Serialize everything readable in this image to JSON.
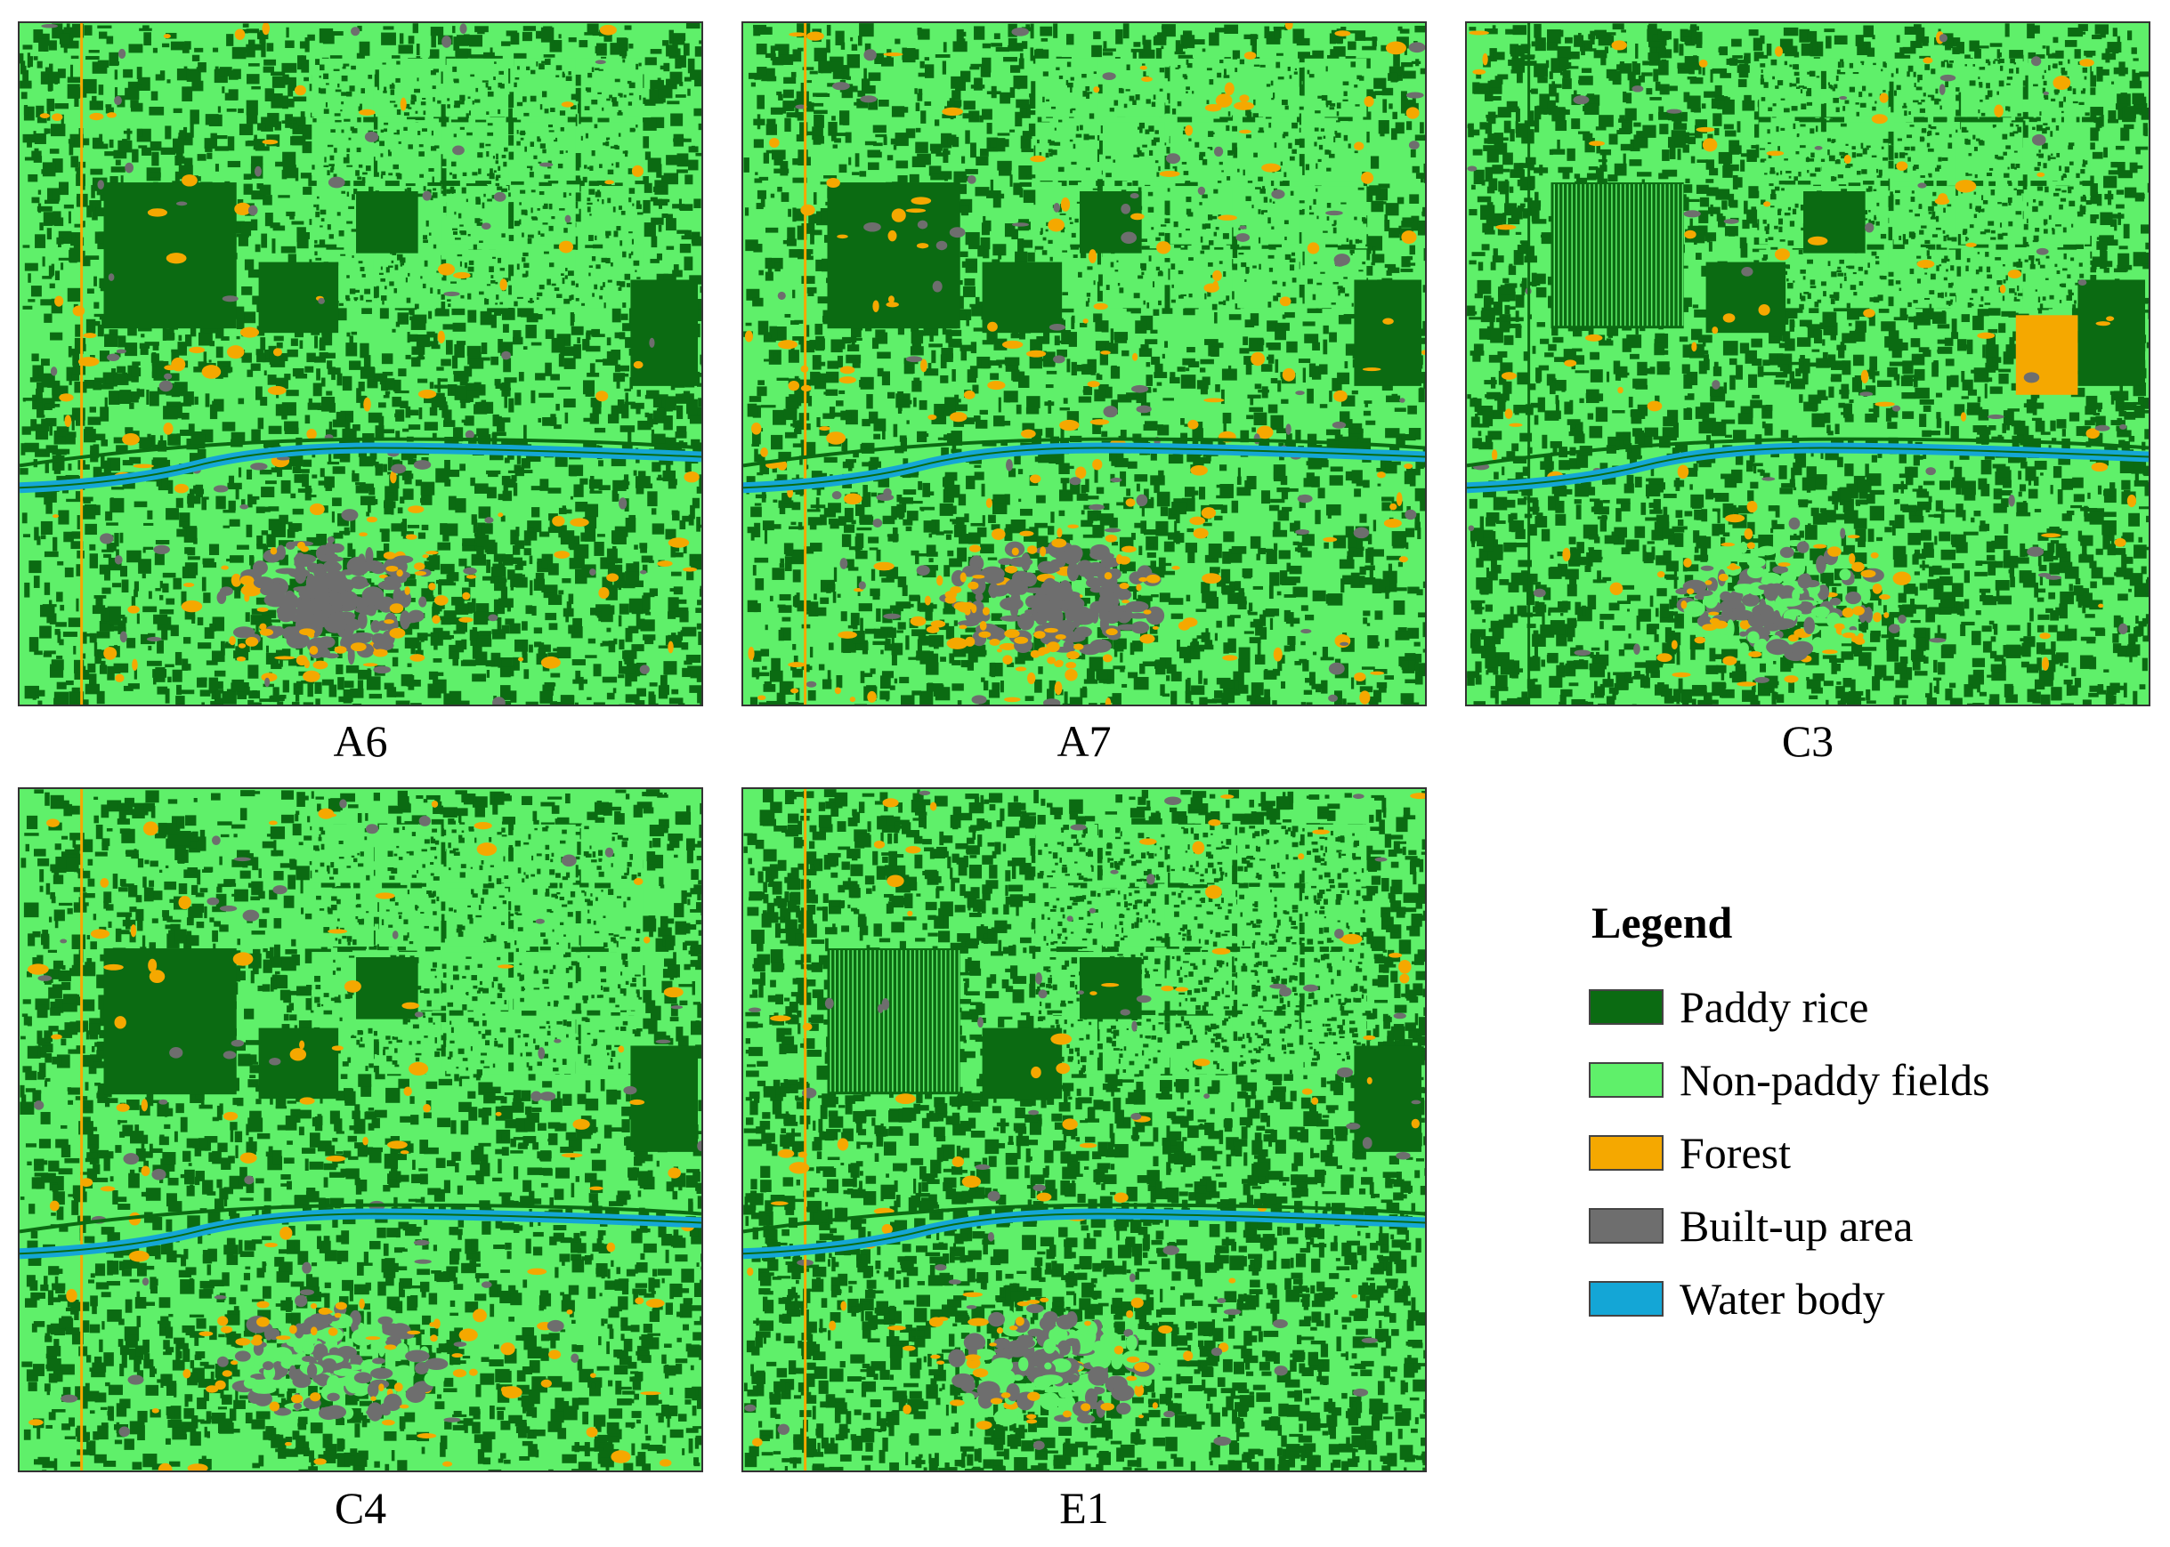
{
  "maps": [
    {
      "id": "A6",
      "label": "A6"
    },
    {
      "id": "A7",
      "label": "A7"
    },
    {
      "id": "C3",
      "label": "C3"
    },
    {
      "id": "C4",
      "label": "C4"
    },
    {
      "id": "E1",
      "label": "E1"
    }
  ],
  "legend": {
    "title": "Legend",
    "items": [
      {
        "label": "Paddy rice",
        "color": "#0b6b12"
      },
      {
        "label": "Non-paddy fields",
        "color": "#5ff06a"
      },
      {
        "label": "Forest",
        "color": "#f5a800"
      },
      {
        "label": "Built-up area",
        "color": "#6e6e6e"
      },
      {
        "label": "Water body",
        "color": "#14a6d6"
      }
    ]
  },
  "colors": {
    "paddy": "#0b6b12",
    "nonpaddy": "#5ff06a",
    "forest": "#f5a800",
    "builtup": "#6e6e6e",
    "water": "#14a6d6"
  }
}
